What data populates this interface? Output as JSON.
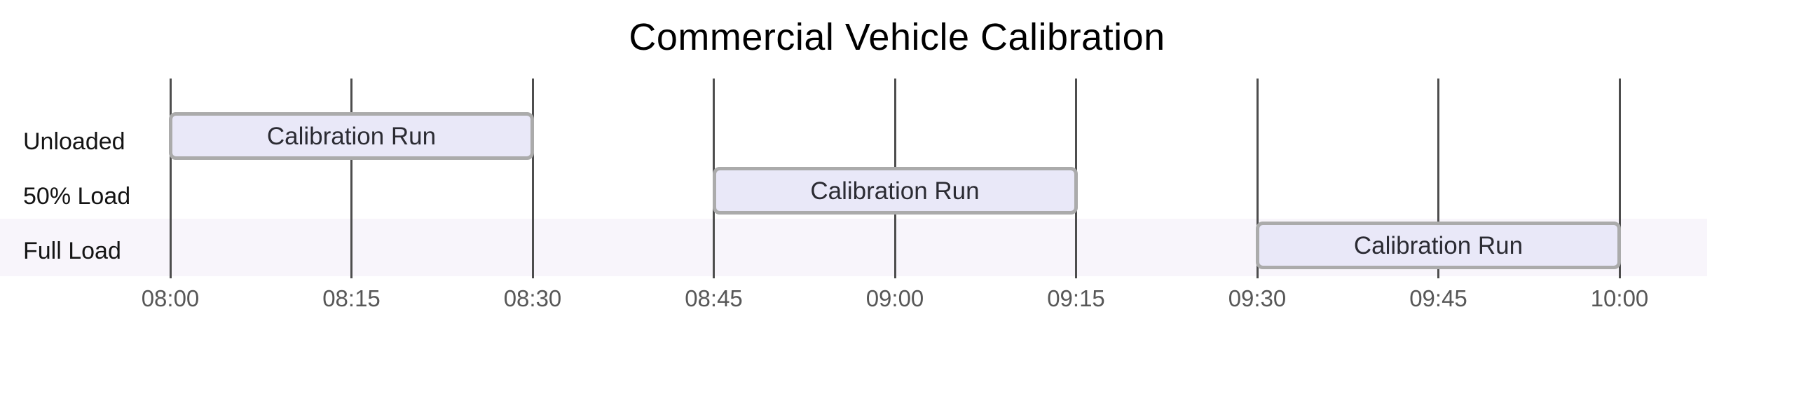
{
  "title": "Commercial Vehicle Calibration",
  "chart_data": {
    "type": "gantt",
    "title": "Commercial Vehicle Calibration",
    "x_axis": {
      "start": "08:00",
      "end": "10:00",
      "tick_interval_minutes": 15,
      "tick_labels": [
        "08:00",
        "08:15",
        "08:30",
        "08:45",
        "09:00",
        "09:15",
        "09:30",
        "09:45",
        "10:00"
      ]
    },
    "rows": [
      {
        "label": "Unloaded",
        "task": "Calibration Run",
        "start": "08:00",
        "end": "08:30"
      },
      {
        "label": "50% Load",
        "task": "Calibration Run",
        "start": "08:45",
        "end": "09:15"
      },
      {
        "label": "Full Load",
        "task": "Calibration Run",
        "start": "09:30",
        "end": "10:00"
      }
    ],
    "highlighted_row_label": "Full Load",
    "grid": "vertical-lines",
    "legend": "none"
  },
  "colors": {
    "background": "#ffffff",
    "title_text": "#000000",
    "bar_fill": "#e9e8f8",
    "bar_border": "#ababab",
    "bar_text": "#2b2b33",
    "row_band": "#f8f5fb",
    "gridline": "#4d4d4d",
    "tick_text": "#575757",
    "row_label_text": "#141414"
  }
}
